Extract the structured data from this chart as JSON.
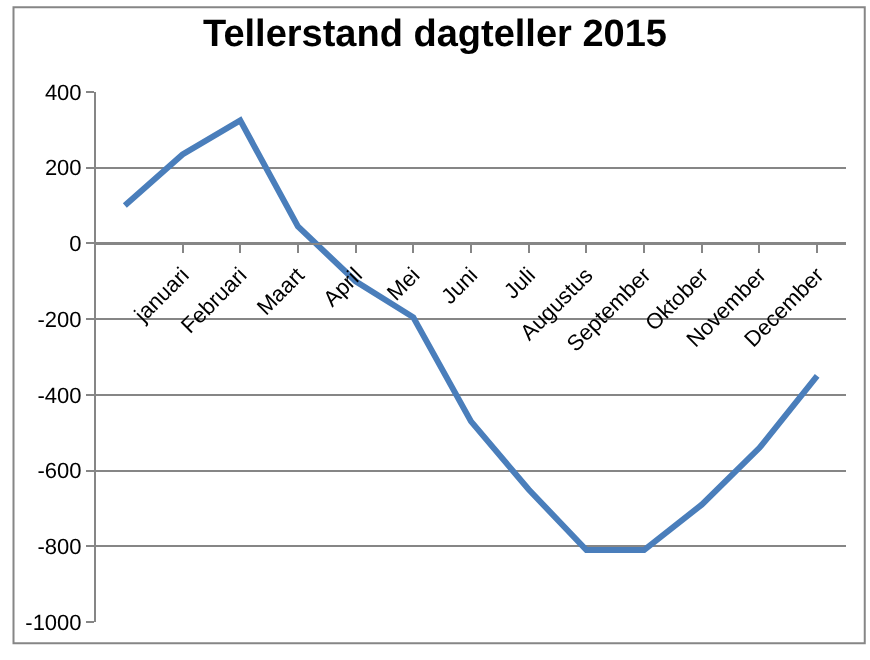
{
  "chart_data": {
    "type": "line",
    "title": "Tellerstand dagteller 2015",
    "categories": [
      null,
      "januari",
      "Februari",
      "Maart",
      "April",
      "Mei",
      "Juni",
      "Juli",
      "Augustus",
      "September",
      "Oktober",
      "November",
      "December"
    ],
    "series": [
      {
        "color": "#4a7ebb",
        "values": [
          100,
          235,
          325,
          45,
          -100,
          -195,
          -470,
          -650,
          -810,
          -810,
          -690,
          -540,
          -350
        ]
      }
    ],
    "ylim": [
      -1000,
      400
    ],
    "yticks": [
      -1000,
      -800,
      -600,
      -400,
      -200,
      0,
      200,
      400
    ],
    "grid": "y",
    "marker": "none",
    "line_style": "solid"
  }
}
